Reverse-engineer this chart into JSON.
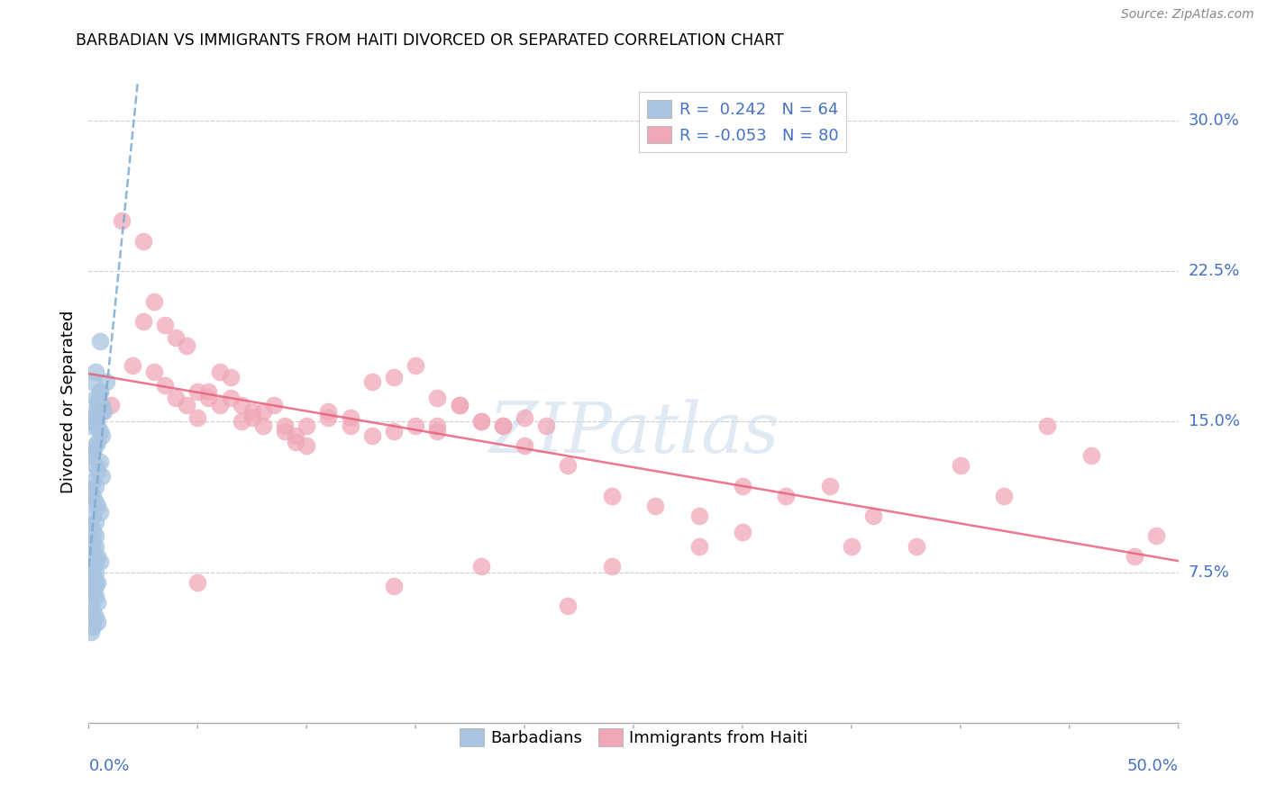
{
  "title": "BARBADIAN VS IMMIGRANTS FROM HAITI DIVORCED OR SEPARATED CORRELATION CHART",
  "source": "Source: ZipAtlas.com",
  "ylabel": "Divorced or Separated",
  "blue_color": "#a8c4e0",
  "pink_color": "#f0a8b8",
  "trend_blue_color": "#7aaad0",
  "trend_pink_color": "#e8607a",
  "watermark": "ZIPatlas",
  "xlim": [
    0.0,
    0.5
  ],
  "ylim": [
    0.0,
    0.32
  ],
  "ytick_values": [
    0.075,
    0.15,
    0.225,
    0.3
  ],
  "ytick_labels": [
    "7.5%",
    "15.0%",
    "22.5%",
    "30.0%"
  ],
  "legend_label_blue": "R =  0.242   N = 64",
  "legend_label_pink": "R = -0.053   N = 80",
  "barbadians_x": [
    0.005,
    0.005,
    0.007,
    0.003,
    0.002,
    0.004,
    0.006,
    0.003,
    0.002,
    0.001,
    0.008,
    0.005,
    0.003,
    0.004,
    0.006,
    0.002,
    0.003,
    0.004,
    0.005,
    0.006,
    0.004,
    0.003,
    0.002,
    0.001,
    0.005,
    0.003,
    0.004,
    0.006,
    0.002,
    0.003,
    0.001,
    0.002,
    0.003,
    0.004,
    0.005,
    0.002,
    0.003,
    0.001,
    0.002,
    0.003,
    0.002,
    0.003,
    0.001,
    0.004,
    0.003,
    0.002,
    0.001,
    0.002,
    0.003,
    0.001,
    0.002,
    0.003,
    0.004,
    0.001,
    0.002,
    0.003,
    0.004,
    0.002,
    0.001,
    0.005,
    0.003,
    0.002,
    0.004,
    0.003
  ],
  "barbadians_y": [
    0.19,
    0.165,
    0.155,
    0.175,
    0.17,
    0.16,
    0.158,
    0.155,
    0.15,
    0.148,
    0.17,
    0.165,
    0.162,
    0.158,
    0.155,
    0.152,
    0.15,
    0.148,
    0.145,
    0.143,
    0.14,
    0.138,
    0.135,
    0.133,
    0.13,
    0.128,
    0.125,
    0.123,
    0.12,
    0.118,
    0.115,
    0.113,
    0.11,
    0.108,
    0.105,
    0.103,
    0.1,
    0.098,
    0.095,
    0.093,
    0.09,
    0.088,
    0.085,
    0.083,
    0.08,
    0.078,
    0.075,
    0.073,
    0.07,
    0.068,
    0.065,
    0.063,
    0.06,
    0.058,
    0.055,
    0.053,
    0.05,
    0.048,
    0.045,
    0.08,
    0.075,
    0.073,
    0.07,
    0.068
  ],
  "haiti_x": [
    0.005,
    0.01,
    0.015,
    0.02,
    0.025,
    0.03,
    0.035,
    0.04,
    0.045,
    0.05,
    0.055,
    0.06,
    0.065,
    0.07,
    0.075,
    0.08,
    0.09,
    0.095,
    0.1,
    0.11,
    0.12,
    0.13,
    0.14,
    0.15,
    0.16,
    0.17,
    0.18,
    0.19,
    0.2,
    0.21,
    0.025,
    0.03,
    0.035,
    0.04,
    0.045,
    0.05,
    0.055,
    0.06,
    0.065,
    0.07,
    0.075,
    0.08,
    0.085,
    0.09,
    0.095,
    0.1,
    0.11,
    0.12,
    0.13,
    0.14,
    0.15,
    0.16,
    0.17,
    0.18,
    0.19,
    0.2,
    0.22,
    0.24,
    0.26,
    0.28,
    0.3,
    0.32,
    0.34,
    0.36,
    0.38,
    0.4,
    0.42,
    0.44,
    0.46,
    0.48,
    0.49,
    0.35,
    0.28,
    0.24,
    0.05,
    0.16,
    0.18,
    0.22,
    0.14,
    0.3
  ],
  "haiti_y": [
    0.155,
    0.158,
    0.25,
    0.178,
    0.2,
    0.175,
    0.168,
    0.162,
    0.158,
    0.152,
    0.165,
    0.158,
    0.162,
    0.158,
    0.152,
    0.155,
    0.145,
    0.14,
    0.148,
    0.155,
    0.152,
    0.17,
    0.172,
    0.178,
    0.162,
    0.158,
    0.15,
    0.148,
    0.152,
    0.148,
    0.24,
    0.21,
    0.198,
    0.192,
    0.188,
    0.165,
    0.162,
    0.175,
    0.172,
    0.15,
    0.155,
    0.148,
    0.158,
    0.148,
    0.143,
    0.138,
    0.152,
    0.148,
    0.143,
    0.145,
    0.148,
    0.145,
    0.158,
    0.15,
    0.148,
    0.138,
    0.128,
    0.113,
    0.108,
    0.103,
    0.118,
    0.113,
    0.118,
    0.103,
    0.088,
    0.128,
    0.113,
    0.148,
    0.133,
    0.083,
    0.093,
    0.088,
    0.088,
    0.078,
    0.07,
    0.148,
    0.078,
    0.058,
    0.068,
    0.095
  ]
}
